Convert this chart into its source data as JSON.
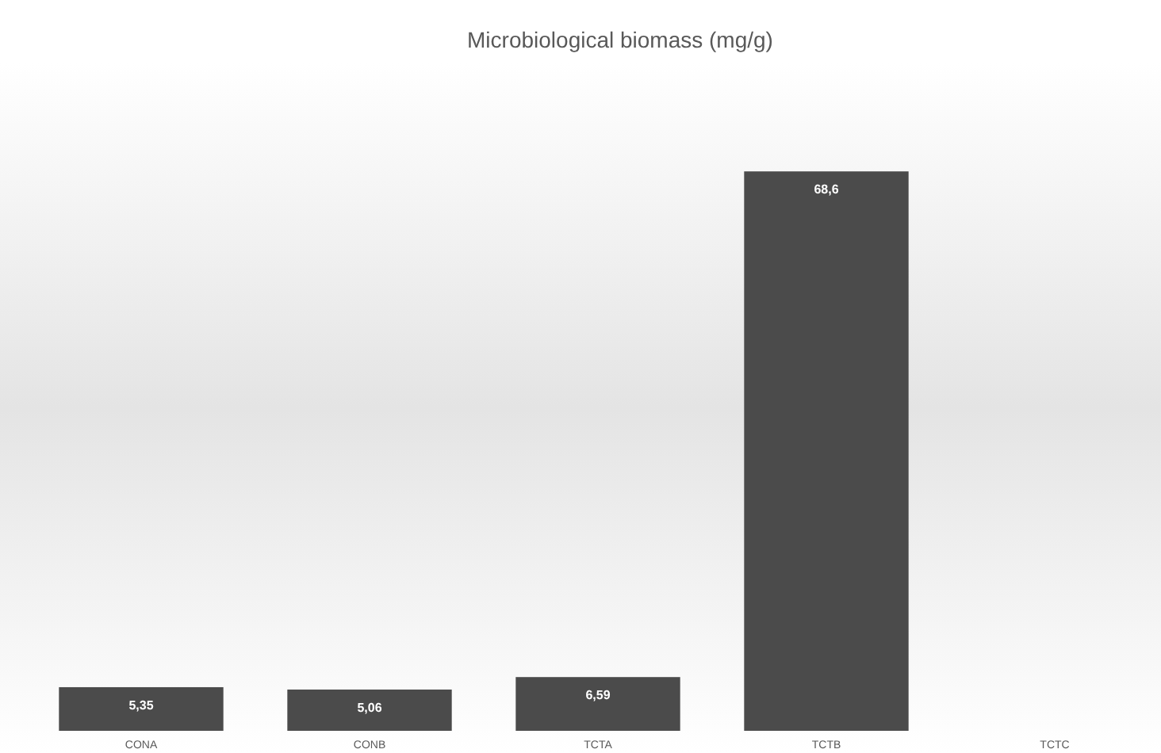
{
  "chart_data": {
    "type": "bar",
    "title": "Microbiological biomass (mg/g)",
    "categories": [
      "CONA",
      "CONB",
      "TCTA",
      "TCTB",
      "TCTC"
    ],
    "values": [
      5.35,
      5.06,
      6.59,
      68.6,
      null
    ],
    "value_labels": [
      "5,35",
      "5,06",
      "6,59",
      "68,6",
      null
    ],
    "color": "#4b4b4b"
  }
}
